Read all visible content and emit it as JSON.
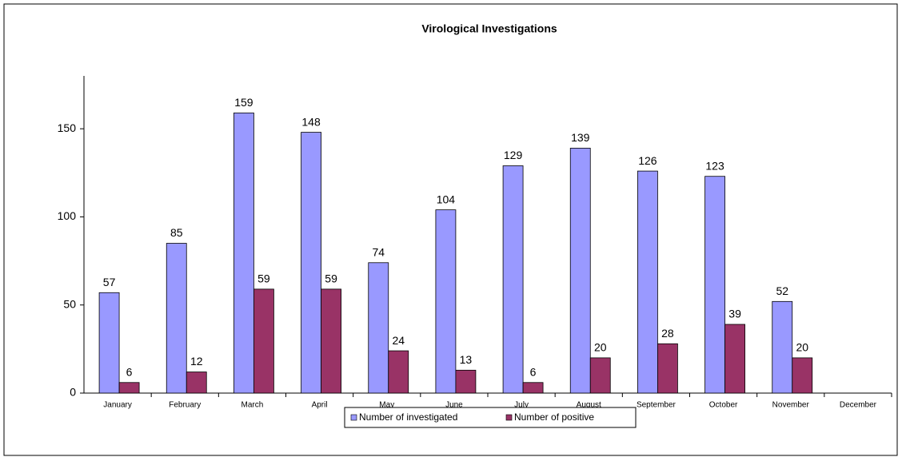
{
  "chart_data": {
    "type": "bar",
    "title": "Virological Investigations",
    "categories": [
      "January",
      "February",
      "March",
      "April",
      "May",
      "June",
      "July",
      "August",
      "September",
      "October",
      "November",
      "December"
    ],
    "series": [
      {
        "name": "Number of investigated",
        "color": "#9999ff",
        "values": [
          57,
          85,
          159,
          148,
          74,
          104,
          129,
          139,
          126,
          123,
          52,
          null
        ]
      },
      {
        "name": "Number of positive",
        "color": "#993366",
        "values": [
          6,
          12,
          59,
          59,
          24,
          13,
          6,
          20,
          28,
          39,
          20,
          null
        ]
      }
    ],
    "ylim": [
      0,
      180
    ],
    "yticks": [
      0,
      50,
      100,
      150
    ],
    "grid": false,
    "legend": "bottom"
  }
}
